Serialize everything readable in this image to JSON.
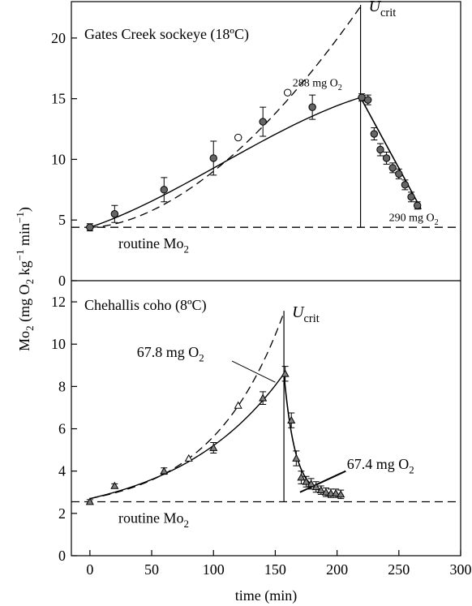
{
  "chart_data": [
    {
      "type": "line",
      "panel_label": "Gates Creek sockeye (18ºC)",
      "ylim": [
        0,
        23
      ],
      "yticks": [
        0,
        5,
        10,
        15,
        20
      ],
      "xlim": [
        -15,
        300
      ],
      "routine_level": 4.4,
      "routine_label": "routine Mo",
      "routine_label_sub": "2",
      "ucrit_time": 219,
      "ucrit_label": "U",
      "ucrit_label_sub": "crit",
      "swim_points": {
        "x": [
          0,
          20,
          60,
          100,
          140,
          180
        ],
        "y": [
          4.4,
          5.5,
          7.5,
          10.1,
          13.1,
          14.3
        ],
        "err": [
          0.3,
          0.7,
          1.0,
          1.4,
          1.2,
          1.0
        ]
      },
      "open_points": {
        "x": [
          120,
          160
        ],
        "y": [
          11.8,
          15.5
        ]
      },
      "recovery_points": {
        "x": [
          220,
          225,
          230,
          235,
          240,
          245,
          250,
          255,
          260,
          265
        ],
        "y": [
          15.1,
          14.9,
          12.1,
          10.8,
          10.1,
          9.3,
          8.8,
          7.9,
          6.9,
          6.2
        ],
        "err": [
          0.3,
          0.4,
          0.5,
          0.5,
          0.5,
          0.4,
          0.4,
          0.4,
          0.4,
          0.3
        ]
      },
      "solid_fit": {
        "x": [
          0,
          219
        ],
        "y0": 4.4,
        "peak_x": 219,
        "peak_y": 15.1
      },
      "dashed_fit": {
        "x": [
          0,
          219
        ],
        "y0": 4.4,
        "y_end": 22.6
      },
      "recovery_fit": {
        "x": [
          219,
          268
        ],
        "y": [
          15.1,
          5.9
        ]
      },
      "area_labels": [
        {
          "text": "288 mg O",
          "sub": "2",
          "x": 164,
          "y": 16.0
        },
        {
          "text": "290 mg O",
          "sub": "2",
          "x": 242,
          "y": 4.9
        }
      ]
    },
    {
      "type": "line",
      "panel_label": "Chehallis coho (8ºC)",
      "ylim": [
        0,
        13
      ],
      "yticks": [
        0,
        2,
        4,
        6,
        8,
        10,
        12
      ],
      "xlim": [
        -15,
        300
      ],
      "routine_level": 2.55,
      "routine_label": "routine Mo",
      "routine_label_sub": "2",
      "ucrit_time": 157,
      "ucrit_label": "U",
      "ucrit_label_sub": "crit",
      "swim_points": {
        "x": [
          0,
          20,
          60,
          100,
          140,
          158
        ],
        "y": [
          2.55,
          3.3,
          4.0,
          5.1,
          7.45,
          8.6
        ],
        "err": [
          0.1,
          0.1,
          0.15,
          0.25,
          0.3,
          0.35
        ]
      },
      "open_points": {
        "x": [
          80,
          120
        ],
        "y": [
          4.6,
          7.1
        ]
      },
      "recovery_points": {
        "x": [
          163,
          167,
          171,
          175,
          179,
          183,
          187,
          191,
          195,
          199,
          203
        ],
        "y": [
          6.4,
          4.6,
          3.7,
          3.5,
          3.4,
          3.25,
          3.1,
          3.0,
          2.95,
          2.95,
          2.9
        ],
        "err": [
          0.35,
          0.35,
          0.3,
          0.25,
          0.25,
          0.25,
          0.2,
          0.2,
          0.2,
          0.2,
          0.2
        ]
      },
      "solid_fit": {
        "x": [
          0,
          157
        ],
        "y0": 2.7,
        "y_end": 8.6,
        "k": 0.0115
      },
      "dashed_fit": {
        "x": [
          0,
          157
        ],
        "y0": 2.7,
        "y_end": 11.5,
        "k": 0.017
      },
      "recovery_fit": {
        "x": [
          157,
          205
        ],
        "floor": 2.85,
        "y_start": 8.6,
        "k": 0.11
      },
      "tangent_line": {
        "x": [
          170,
          207
        ],
        "y": [
          3.0,
          4.0
        ]
      },
      "area_labels": [
        {
          "text": "67.8 mg O",
          "sub": "2",
          "x": 38,
          "y": 9.4
        },
        {
          "text": "67.4 mg O",
          "sub": "2",
          "x": 208,
          "y": 4.1
        }
      ],
      "pointer_line": {
        "x": [
          115,
          150
        ],
        "y": [
          9.2,
          8.2
        ]
      }
    }
  ],
  "axes": {
    "xlabel": "time (min)",
    "xticks": [
      0,
      50,
      100,
      150,
      200,
      250,
      300
    ],
    "ylabel_parts": [
      "Mo",
      "2",
      " (mg O",
      "2",
      " kg",
      "−1",
      " min",
      "−1",
      ")"
    ]
  }
}
